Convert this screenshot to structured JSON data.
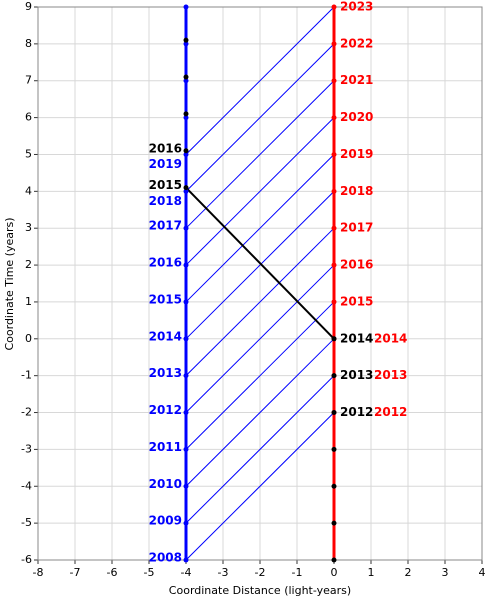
{
  "chart_data": {
    "type": "line",
    "xlabel": "Coordinate Distance (light-years)",
    "ylabel": "Coordinate Time (years)",
    "xlim": [
      -8,
      4
    ],
    "ylim": [
      -6,
      9
    ],
    "xticks": [
      -8,
      -7,
      -6,
      -5,
      -4,
      -3,
      -2,
      -1,
      0,
      1,
      2,
      3,
      4
    ],
    "yticks": [
      -6,
      -5,
      -4,
      -3,
      -2,
      -1,
      0,
      1,
      2,
      3,
      4,
      5,
      6,
      7,
      8,
      9
    ],
    "grid": true,
    "signal_color": "#0000ff",
    "signals": [
      {
        "x": [
          -4,
          0
        ],
        "y": [
          -6,
          -2
        ]
      },
      {
        "x": [
          -4,
          0
        ],
        "y": [
          -5,
          -1
        ]
      },
      {
        "x": [
          -4,
          0
        ],
        "y": [
          -4,
          0
        ]
      },
      {
        "x": [
          -4,
          0
        ],
        "y": [
          -3,
          1
        ]
      },
      {
        "x": [
          -4,
          0
        ],
        "y": [
          -2,
          2
        ]
      },
      {
        "x": [
          -4,
          0
        ],
        "y": [
          -1,
          3
        ]
      },
      {
        "x": [
          -4,
          0
        ],
        "y": [
          0,
          4
        ]
      },
      {
        "x": [
          -4,
          0
        ],
        "y": [
          1,
          5
        ]
      },
      {
        "x": [
          -4,
          0
        ],
        "y": [
          2,
          6
        ]
      },
      {
        "x": [
          -4,
          0
        ],
        "y": [
          3,
          7
        ]
      },
      {
        "x": [
          -4,
          0
        ],
        "y": [
          4,
          8
        ]
      },
      {
        "x": [
          -4,
          0
        ],
        "y": [
          5,
          9
        ]
      }
    ],
    "worldlines": [
      {
        "color": "#0000ff",
        "x": [
          -4,
          -4
        ],
        "y": [
          -6,
          9
        ]
      },
      {
        "color": "#ff0000",
        "x": [
          0,
          0
        ],
        "y": [
          -6,
          9
        ]
      },
      {
        "color": "#000000",
        "x": [
          0,
          -4
        ],
        "y": [
          0,
          4.1
        ]
      }
    ],
    "point_groups": [
      {
        "color": "#0000ff",
        "side": "left",
        "x": [
          -4,
          -4,
          -4,
          -4,
          -4,
          -4,
          -4,
          -4,
          -4,
          -4,
          -4,
          -4,
          -4,
          -4,
          -4,
          -4
        ],
        "y": [
          -6,
          -5,
          -4,
          -3,
          -2,
          -1,
          0,
          1,
          2,
          3,
          4,
          5,
          6,
          7,
          8,
          9
        ],
        "labels": [
          "2008",
          "2009",
          "2010",
          "2011",
          "2012",
          "2013",
          "2014",
          "2015",
          "2016",
          "2017",
          "2018",
          "2019",
          null,
          null,
          null,
          null
        ]
      },
      {
        "color": "#ff0000",
        "side": "right",
        "x": [
          0,
          0,
          0,
          0,
          0,
          0,
          0,
          0,
          0,
          0,
          0,
          0
        ],
        "y": [
          -2,
          -1,
          0,
          1,
          2,
          3,
          4,
          5,
          6,
          7,
          8,
          9
        ],
        "labels": [
          "2012",
          "2013",
          "2014",
          "2015",
          "2016",
          "2017",
          "2018",
          "2019",
          "2020",
          "2021",
          "2022",
          "2023"
        ]
      },
      {
        "color": "#000000",
        "side": "right",
        "x": [
          0,
          0,
          0,
          0,
          0,
          0,
          0
        ],
        "y": [
          -6,
          -5,
          -4,
          -3,
          -2,
          -1,
          0
        ],
        "labels": [
          null,
          null,
          null,
          null,
          "2012",
          "2013",
          "2014"
        ]
      },
      {
        "color": "#000000",
        "side": "left",
        "x": [
          -4,
          -4,
          -4,
          -4,
          -4
        ],
        "y": [
          4.1,
          5.1,
          6.1,
          7.1,
          8.1
        ],
        "labels": [
          "2015",
          "2016",
          null,
          null,
          null
        ]
      }
    ]
  }
}
